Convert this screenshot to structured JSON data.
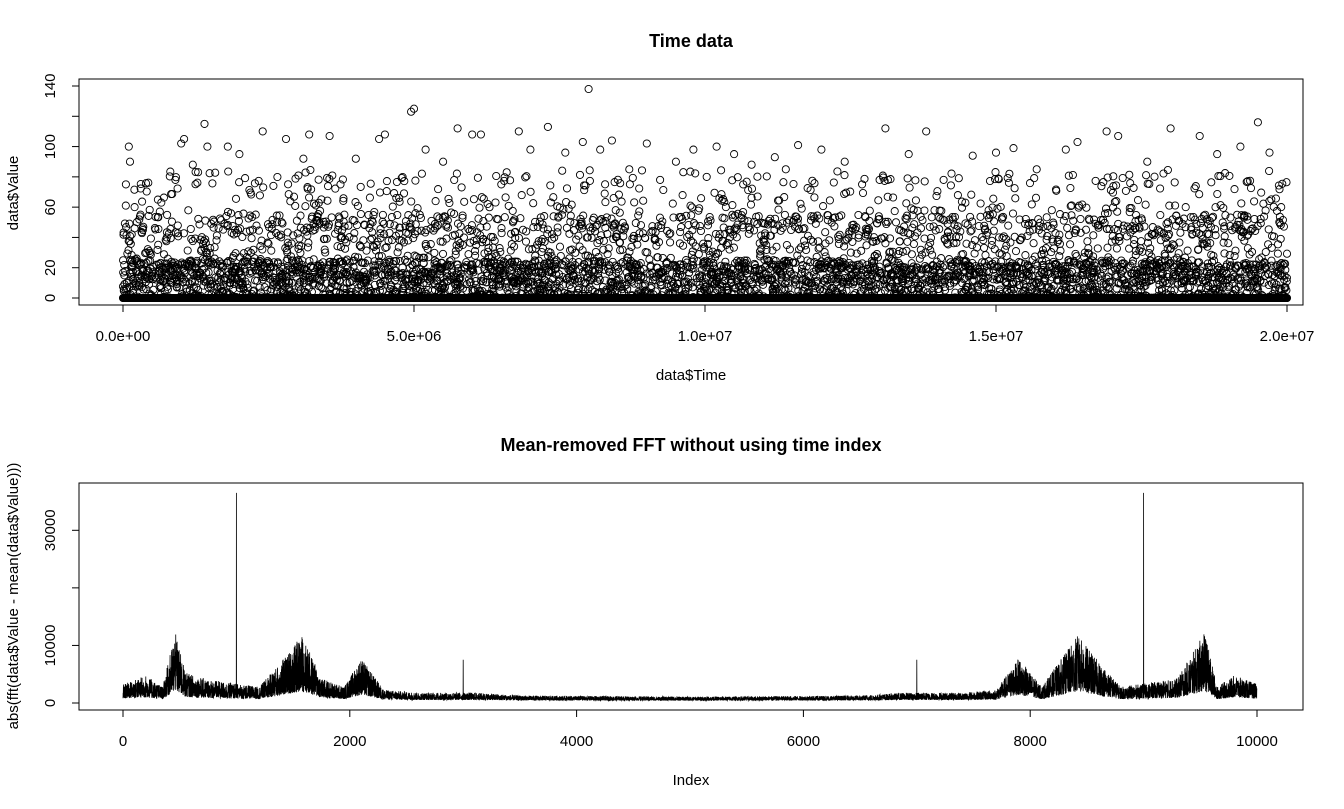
{
  "chart_data": [
    {
      "type": "scatter",
      "title": "Time data",
      "xlabel": "data$Time",
      "ylabel": "data$Value",
      "xlim": [
        0,
        20000000
      ],
      "ylim": [
        0,
        140
      ],
      "x_ticks": [
        0,
        5000000,
        10000000,
        15000000,
        20000000
      ],
      "x_tick_labels": [
        "0.0e+00",
        "5.0e+06",
        "1.0e+07",
        "1.5e+07",
        "2.0e+07"
      ],
      "y_ticks": [
        0,
        20,
        40,
        60,
        80,
        100,
        120,
        140
      ],
      "y_tick_labels": [
        "0",
        "20",
        "",
        "60",
        "",
        "100",
        "",
        "140"
      ],
      "marker": "open-circle",
      "color": "#000000",
      "n_points": 10000,
      "points": [
        [
          0,
          0
        ],
        [
          50000,
          75
        ],
        [
          100000,
          100
        ],
        [
          120000,
          90
        ],
        [
          150000,
          42
        ],
        [
          200000,
          60
        ],
        [
          300000,
          55
        ],
        [
          400000,
          30
        ],
        [
          600000,
          65
        ],
        [
          900000,
          78
        ],
        [
          1000000,
          102
        ],
        [
          1050000,
          105
        ],
        [
          1200000,
          88
        ],
        [
          1400000,
          115
        ],
        [
          1450000,
          100
        ],
        [
          1800000,
          100
        ],
        [
          2000000,
          95
        ],
        [
          2400000,
          110
        ],
        [
          2800000,
          105
        ],
        [
          3100000,
          92
        ],
        [
          3200000,
          108
        ],
        [
          3550000,
          107
        ],
        [
          4000000,
          92
        ],
        [
          4400000,
          105
        ],
        [
          4500000,
          108
        ],
        [
          4950000,
          123
        ],
        [
          5000000,
          125
        ],
        [
          5200000,
          98
        ],
        [
          5500000,
          90
        ],
        [
          5750000,
          112
        ],
        [
          6000000,
          108
        ],
        [
          6150000,
          108
        ],
        [
          6500000,
          75
        ],
        [
          6800000,
          110
        ],
        [
          7000000,
          98
        ],
        [
          7300000,
          113
        ],
        [
          7600000,
          96
        ],
        [
          7900000,
          103
        ],
        [
          8000000,
          138
        ],
        [
          8200000,
          98
        ],
        [
          8400000,
          104
        ],
        [
          8700000,
          85
        ],
        [
          9000000,
          102
        ],
        [
          9500000,
          90
        ],
        [
          9800000,
          98
        ],
        [
          10200000,
          100
        ],
        [
          10500000,
          95
        ],
        [
          10800000,
          88
        ],
        [
          11200000,
          93
        ],
        [
          11600000,
          101
        ],
        [
          12000000,
          98
        ],
        [
          12400000,
          90
        ],
        [
          12700000,
          75
        ],
        [
          13000000,
          78
        ],
        [
          13100000,
          112
        ],
        [
          13500000,
          95
        ],
        [
          13800000,
          110
        ],
        [
          14100000,
          78
        ],
        [
          14600000,
          94
        ],
        [
          15000000,
          96
        ],
        [
          15300000,
          99
        ],
        [
          15700000,
          85
        ],
        [
          16200000,
          98
        ],
        [
          16400000,
          103
        ],
        [
          16900000,
          110
        ],
        [
          17100000,
          107
        ],
        [
          17600000,
          90
        ],
        [
          18000000,
          112
        ],
        [
          18500000,
          107
        ],
        [
          18800000,
          95
        ],
        [
          19200000,
          100
        ],
        [
          19500000,
          116
        ],
        [
          19700000,
          96
        ],
        [
          19900000,
          60
        ],
        [
          20000000,
          0
        ]
      ]
    },
    {
      "type": "line",
      "title": "Mean-removed FFT without using time index",
      "xlabel": "Index",
      "ylabel": "abs(fft(data$Value - mean(data$Value)))",
      "xlim": [
        0,
        10000
      ],
      "ylim": [
        0,
        37000
      ],
      "x_ticks": [
        0,
        2000,
        4000,
        6000,
        8000,
        10000
      ],
      "x_tick_labels": [
        "0",
        "2000",
        "4000",
        "6000",
        "8000",
        "10000"
      ],
      "y_ticks": [
        0,
        10000,
        20000,
        30000
      ],
      "y_tick_labels": [
        "0",
        "10000",
        "",
        "30000"
      ],
      "color": "#000000",
      "n_points": 10000,
      "spikes": [
        {
          "x": 1000,
          "y": 36500
        },
        {
          "x": 3000,
          "y": 7500
        },
        {
          "x": 7000,
          "y": 7500
        },
        {
          "x": 9000,
          "y": 36500
        }
      ],
      "envelope": [
        {
          "x": 0,
          "y": 3000
        },
        {
          "x": 200,
          "y": 4500
        },
        {
          "x": 350,
          "y": 2500
        },
        {
          "x": 460,
          "y": 12000
        },
        {
          "x": 550,
          "y": 5000
        },
        {
          "x": 700,
          "y": 4000
        },
        {
          "x": 850,
          "y": 3500
        },
        {
          "x": 1200,
          "y": 2500
        },
        {
          "x": 1400,
          "y": 7000
        },
        {
          "x": 1580,
          "y": 11500
        },
        {
          "x": 1750,
          "y": 4000
        },
        {
          "x": 1950,
          "y": 2500
        },
        {
          "x": 2100,
          "y": 7500
        },
        {
          "x": 2300,
          "y": 2000
        },
        {
          "x": 2600,
          "y": 1500
        },
        {
          "x": 3100,
          "y": 1500
        },
        {
          "x": 3500,
          "y": 1000
        },
        {
          "x": 5000,
          "y": 800
        },
        {
          "x": 6500,
          "y": 1000
        },
        {
          "x": 6900,
          "y": 1500
        },
        {
          "x": 7400,
          "y": 1500
        },
        {
          "x": 7700,
          "y": 2000
        },
        {
          "x": 7900,
          "y": 7500
        },
        {
          "x": 8100,
          "y": 2500
        },
        {
          "x": 8420,
          "y": 11500
        },
        {
          "x": 8600,
          "y": 7000
        },
        {
          "x": 8800,
          "y": 2500
        },
        {
          "x": 9150,
          "y": 3500
        },
        {
          "x": 9300,
          "y": 4000
        },
        {
          "x": 9540,
          "y": 12000
        },
        {
          "x": 9650,
          "y": 2500
        },
        {
          "x": 9800,
          "y": 4500
        },
        {
          "x": 10000,
          "y": 3000
        }
      ]
    }
  ]
}
